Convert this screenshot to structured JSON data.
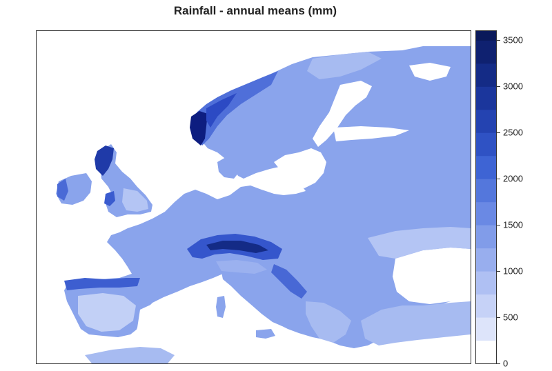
{
  "title": "Rainfall - annual means (mm)",
  "colorbar": {
    "min": 0,
    "max": 3600,
    "bin_width": 250,
    "ticks": [
      "0",
      "500",
      "1000",
      "1500",
      "2000",
      "2500",
      "3000",
      "3500"
    ],
    "tick_values": [
      0,
      500,
      1000,
      1500,
      2000,
      2500,
      3000,
      3500
    ],
    "colors": [
      "#ffffff",
      "#dde4fa",
      "#c6d2f7",
      "#afc0f3",
      "#98aeee",
      "#819ce9",
      "#6a89e4",
      "#5477dc",
      "#3e64d4",
      "#2f52c4",
      "#2443b1",
      "#1b369c",
      "#142b86",
      "#0f2170",
      "#0a195a",
      "#061145",
      "#030a2f",
      "#000000"
    ]
  },
  "legend_placement": "right",
  "regions": {
    "land": "#8aa4ec",
    "dry_areas": "#c2d0f6",
    "sea": "#ffffff",
    "wet_mountains": "#2c4ac4",
    "very_wet": "#0b1a78"
  }
}
